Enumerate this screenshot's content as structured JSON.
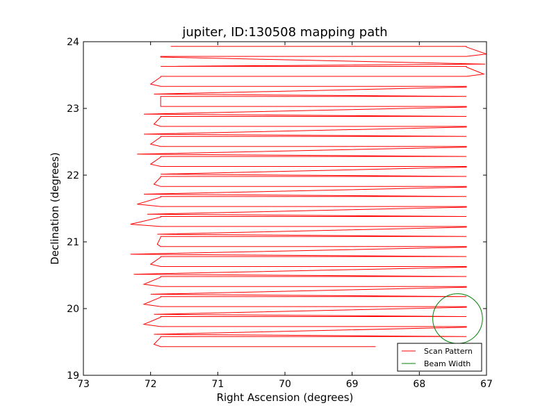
{
  "chart_data": {
    "type": "line",
    "title": "jupiter, ID:130508 mapping path",
    "xlabel": "Right Ascension (degrees)",
    "ylabel": "Declination (degrees)",
    "xlim": [
      73,
      67
    ],
    "ylim": [
      19,
      24
    ],
    "x_inverted": true,
    "xticks": [
      73,
      72,
      71,
      70,
      69,
      68,
      67
    ],
    "yticks": [
      19,
      20,
      21,
      22,
      23,
      24
    ],
    "grid": false,
    "legend_position": "lower right",
    "series": [
      {
        "name": "Scan Pattern",
        "color": "#ff0000",
        "passes": [
          {
            "y": 19.43,
            "x_start": 68.65,
            "x_end": 71.85
          },
          {
            "y": 19.58,
            "x_start": 71.85,
            "x_end": 67.3
          },
          {
            "y": 19.73,
            "x_start": 67.3,
            "x_end": 71.85
          },
          {
            "y": 19.88,
            "x_start": 71.85,
            "x_end": 67.3
          },
          {
            "y": 20.03,
            "x_start": 67.3,
            "x_end": 71.85
          },
          {
            "y": 20.18,
            "x_start": 71.85,
            "x_end": 67.3
          },
          {
            "y": 20.33,
            "x_start": 67.3,
            "x_end": 71.85
          },
          {
            "y": 20.48,
            "x_start": 71.85,
            "x_end": 67.3
          },
          {
            "y": 20.63,
            "x_start": 67.3,
            "x_end": 71.85
          },
          {
            "y": 20.78,
            "x_start": 71.85,
            "x_end": 67.3
          },
          {
            "y": 20.93,
            "x_start": 67.3,
            "x_end": 71.85
          },
          {
            "y": 21.08,
            "x_start": 71.85,
            "x_end": 67.3
          },
          {
            "y": 21.23,
            "x_start": 67.3,
            "x_end": 71.85
          },
          {
            "y": 21.38,
            "x_start": 71.85,
            "x_end": 67.3
          },
          {
            "y": 21.53,
            "x_start": 67.3,
            "x_end": 71.85
          },
          {
            "y": 21.68,
            "x_start": 71.85,
            "x_end": 67.3
          },
          {
            "y": 21.83,
            "x_start": 67.3,
            "x_end": 71.85
          },
          {
            "y": 21.98,
            "x_start": 71.85,
            "x_end": 67.3
          },
          {
            "y": 22.13,
            "x_start": 67.3,
            "x_end": 71.85
          },
          {
            "y": 22.28,
            "x_start": 71.85,
            "x_end": 67.3
          },
          {
            "y": 22.43,
            "x_start": 67.3,
            "x_end": 71.85
          },
          {
            "y": 22.58,
            "x_start": 71.85,
            "x_end": 67.3
          },
          {
            "y": 22.73,
            "x_start": 67.3,
            "x_end": 71.85
          },
          {
            "y": 22.88,
            "x_start": 71.85,
            "x_end": 67.3
          },
          {
            "y": 23.03,
            "x_start": 67.3,
            "x_end": 71.85
          },
          {
            "y": 23.18,
            "x_start": 71.85,
            "x_end": 67.3
          },
          {
            "y": 23.33,
            "x_start": 67.3,
            "x_end": 71.85
          },
          {
            "y": 23.48,
            "x_start": 71.85,
            "x_end": 67.3
          },
          {
            "y": 23.63,
            "x_start": 67.3,
            "x_end": 71.85
          },
          {
            "y": 23.78,
            "x_start": 71.85,
            "x_end": 67.3
          },
          {
            "y": 23.93,
            "x_start": 67.3,
            "x_end": 71.7
          }
        ],
        "turn_extents": [
          71.95,
          71.95,
          72.1,
          71.95,
          72.1,
          72.0,
          72.1,
          72.25,
          72.0,
          72.3,
          71.9,
          71.9,
          72.3,
          72.05,
          72.2,
          72.1,
          71.95,
          71.85,
          72.0,
          72.2,
          72.0,
          72.1,
          71.95,
          72.1,
          71.85,
          71.95,
          72.0,
          67.04,
          67.02,
          67.0,
          67.3
        ]
      },
      {
        "name": "Beam Width",
        "color": "#008000",
        "shape": "circle",
        "center": [
          67.43,
          19.85
        ],
        "radius": 0.37
      }
    ]
  }
}
